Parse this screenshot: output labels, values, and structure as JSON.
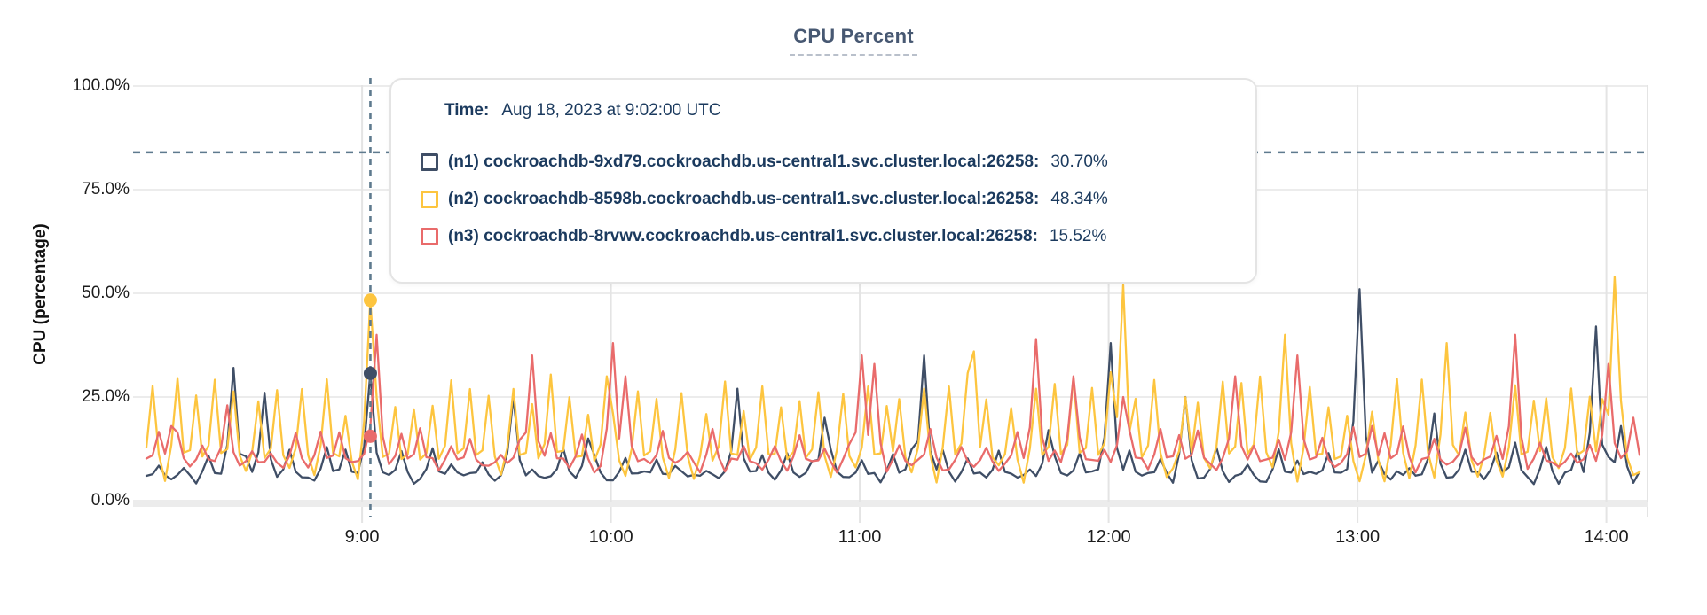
{
  "tooltip": {
    "time_label": "Time:",
    "time_value": "Aug 18, 2023 at 9:02:00 UTC"
  },
  "palette": {
    "grid_line": "#ececec",
    "grid_line_vertical": "#e4e4e4",
    "axis_band": "#ececec",
    "dashed_guide": "#5e7a8e",
    "title_color": "#475872",
    "tooltip_text": "#1b3a5e"
  },
  "chart_data": {
    "type": "line",
    "title": "CPU Percent",
    "ylabel": "CPU (percentage)",
    "ylim": [
      0,
      100
    ],
    "grid": true,
    "window_minutes": 360,
    "threshold_pct": 84,
    "y_ticks": [
      {
        "v": 0,
        "label": "0.0%"
      },
      {
        "v": 25,
        "label": "25.0%"
      },
      {
        "v": 50,
        "label": "50.0%"
      },
      {
        "v": 75,
        "label": "75.0%"
      },
      {
        "v": 100,
        "label": "100.0%"
      }
    ],
    "x_ticks": [
      {
        "minute": 52,
        "label": "9:00"
      },
      {
        "minute": 112,
        "label": "10:00"
      },
      {
        "minute": 172,
        "label": "11:00"
      },
      {
        "minute": 232,
        "label": "12:00"
      },
      {
        "minute": 292,
        "label": "13:00"
      },
      {
        "minute": 352,
        "label": "14:00"
      }
    ],
    "hover": {
      "minute": 54,
      "time": "9:02"
    },
    "series": [
      {
        "id": "n1",
        "color": "#3f4e66",
        "host": "(n1) cockroachdb-9xd79.cockroachdb.us-central1.svc.cluster.local:26258:",
        "hover_value": "30.70%",
        "hover_value_pct": 30.7,
        "gen": {
          "seed": 11,
          "baseline": 5.5,
          "noise": 1.6,
          "period": 6.5,
          "phase": 3.5,
          "jitter": 3,
          "peak_min": 7,
          "peak_max": 13
        },
        "major_spikes": [
          [
            21,
            32
          ],
          [
            29,
            26
          ],
          [
            54,
            30.7
          ],
          [
            89,
            25
          ],
          [
            107,
            15
          ],
          [
            142,
            27
          ],
          [
            164,
            20
          ],
          [
            188,
            35
          ],
          [
            218,
            17
          ],
          [
            233,
            38
          ],
          [
            250,
            25
          ],
          [
            292,
            51
          ],
          [
            310,
            21
          ],
          [
            330,
            14
          ],
          [
            349,
            42
          ],
          [
            356,
            18
          ]
        ]
      },
      {
        "id": "n2",
        "color": "#fdc53f",
        "host": "(n2) cockroachdb-8598b.cockroachdb.us-central1.svc.cluster.local:26258:",
        "hover_value": "48.34%",
        "hover_value_pct": 48.34,
        "gen": {
          "seed": 22,
          "baseline": 6.5,
          "noise": 2.2,
          "period": 5.1,
          "phase": 1.2,
          "jitter": 2.4,
          "peak_min": 20,
          "peak_max": 31
        },
        "major_spikes": [
          [
            54,
            48.34
          ],
          [
            111,
            30
          ],
          [
            200,
            36
          ],
          [
            236,
            52
          ],
          [
            274,
            40
          ],
          [
            313,
            38
          ],
          [
            354,
            54
          ]
        ]
      },
      {
        "id": "n3",
        "color": "#e96b6b",
        "host": "(n3) cockroachdb-8rvwv.cockroachdb.us-central1.svc.cluster.local:26258:",
        "hover_value": "15.52%",
        "hover_value_pct": 15.52,
        "gen": {
          "seed": 33,
          "baseline": 8.5,
          "noise": 1.8,
          "period": 6.2,
          "phase": 2.6,
          "jitter": 3,
          "peak_min": 11,
          "peak_max": 18
        },
        "major_spikes": [
          [
            6,
            18
          ],
          [
            19,
            23
          ],
          [
            54,
            15.52
          ],
          [
            55.5,
            40
          ],
          [
            93,
            35
          ],
          [
            112,
            38
          ],
          [
            115,
            30
          ],
          [
            172,
            35
          ],
          [
            175,
            33
          ],
          [
            215,
            39
          ],
          [
            224,
            30
          ],
          [
            236,
            25
          ],
          [
            262,
            30
          ],
          [
            278,
            35
          ],
          [
            296,
            18
          ],
          [
            330,
            40
          ],
          [
            352,
            33
          ],
          [
            358,
            20
          ]
        ]
      }
    ]
  }
}
